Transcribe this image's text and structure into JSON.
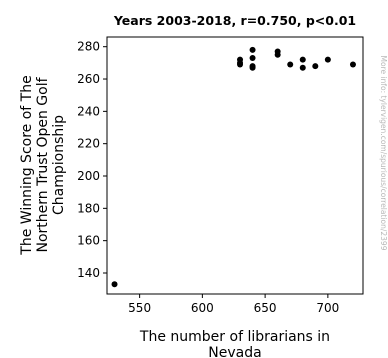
{
  "chart_data": {
    "type": "scatter",
    "title": "Years 2003-2018, r=0.750, p<0.01",
    "xlabel_lines": [
      "The number of librarians in",
      "Nevada"
    ],
    "ylabel_lines": [
      "The Winning Score of The",
      "Northern Trust Open Golf",
      "Championship"
    ],
    "side_note": "More info: tylervigen.com/spurious/correlation/2399",
    "xlim": [
      524,
      728
    ],
    "ylim": [
      127,
      286
    ],
    "xticks": [
      550,
      600,
      650,
      700
    ],
    "yticks": [
      140,
      160,
      180,
      200,
      220,
      240,
      260,
      280
    ],
    "grid": false,
    "marker_color": "#000000",
    "points": [
      {
        "x": 530,
        "y": 133
      },
      {
        "x": 630,
        "y": 272
      },
      {
        "x": 630,
        "y": 270
      },
      {
        "x": 630,
        "y": 269
      },
      {
        "x": 640,
        "y": 278
      },
      {
        "x": 640,
        "y": 273
      },
      {
        "x": 640,
        "y": 268
      },
      {
        "x": 640,
        "y": 267
      },
      {
        "x": 660,
        "y": 277
      },
      {
        "x": 660,
        "y": 275
      },
      {
        "x": 670,
        "y": 269
      },
      {
        "x": 680,
        "y": 272
      },
      {
        "x": 680,
        "y": 267
      },
      {
        "x": 690,
        "y": 268
      },
      {
        "x": 700,
        "y": 272
      },
      {
        "x": 720,
        "y": 269
      }
    ]
  }
}
